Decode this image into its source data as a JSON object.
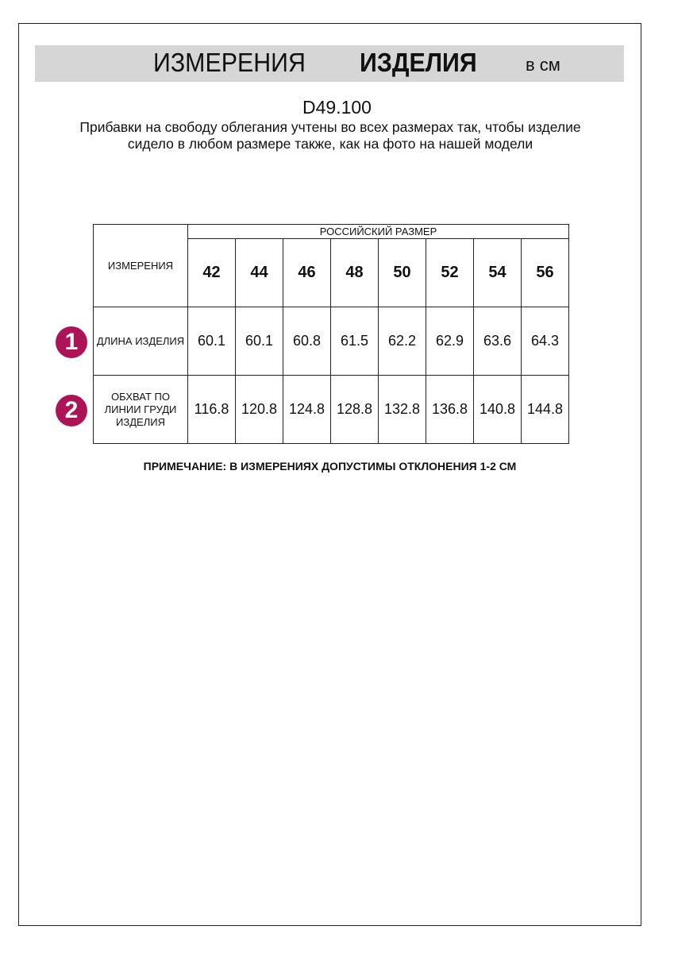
{
  "header": {
    "title_regular": "ИЗМЕРЕНИЯ",
    "title_bold": "ИЗДЕЛИЯ",
    "unit": "в см"
  },
  "product_code": "D49.100",
  "description": "Прибавки на свободу облегания учтены во всех размерах так, чтобы изделие сидело в любом размере также, как на фото на нашей модели",
  "table": {
    "corner_label": "ИЗМЕРЕНИЯ",
    "group_header": "РОССИЙСКИЙ РАЗМЕР",
    "sizes": [
      "42",
      "44",
      "46",
      "48",
      "50",
      "52",
      "54",
      "56"
    ],
    "rows": [
      {
        "marker": "1",
        "label": "ДЛИНА ИЗДЕЛИЯ",
        "values": [
          "60.1",
          "60.1",
          "60.8",
          "61.5",
          "62.2",
          "62.9",
          "63.6",
          "64.3"
        ]
      },
      {
        "marker": "2",
        "label": "ОБХВАТ ПО ЛИНИИ ГРУДИ ИЗДЕЛИЯ",
        "values": [
          "116.8",
          "120.8",
          "124.8",
          "128.8",
          "132.8",
          "136.8",
          "140.8",
          "144.8"
        ]
      }
    ]
  },
  "note": "ПРИМЕЧАНИЕ: В ИЗМЕРЕНИЯХ ДОПУСТИМЫ ОТКЛОНЕНИЯ 1-2 СМ",
  "colors": {
    "marker": "#ad1457",
    "header_bar": "#d6d6d6"
  }
}
